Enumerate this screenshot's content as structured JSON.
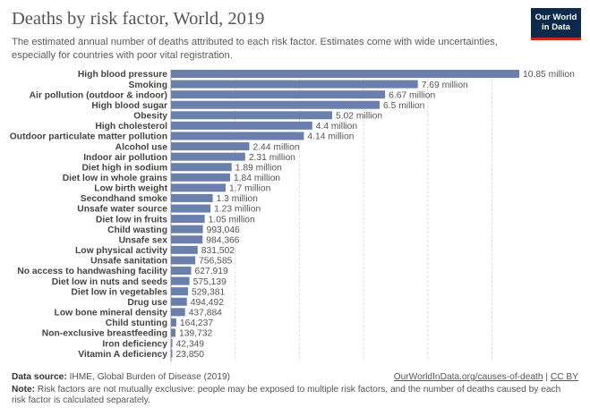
{
  "header": {
    "title": "Deaths by risk factor, World, 2019",
    "subtitle": "The estimated annual number of deaths attributed to each risk factor. Estimates come with wide uncertainties, especially for countries with poor vital registration.",
    "logo_line1": "Our World",
    "logo_line2": "in Data"
  },
  "footer": {
    "source_label": "Data source:",
    "source_text": "IHME, Global Burden of Disease (2019)",
    "link_text": "OurWorldInData.org/causes-of-death",
    "link_sep": " | ",
    "license": "CC BY",
    "note_label": "Note:",
    "note_text": "Risk factors are not mutually exclusive: people may be exposed to multiple risk factors, and the number of deaths caused by each risk factor is calculated separately."
  },
  "colors": {
    "bar": "#6a7fab",
    "logo_bg": "#0c2a4c",
    "logo_accent": "#ce261e"
  },
  "chart_data": {
    "type": "bar",
    "orientation": "horizontal",
    "categories": [
      "High blood pressure",
      "Smoking",
      "Air pollution (outdoor & indoor)",
      "High blood sugar",
      "Obesity",
      "High cholesterol",
      "Outdoor particulate matter pollution",
      "Alcohol use",
      "Indoor air pollution",
      "Diet high in sodium",
      "Diet low in whole grains",
      "Low birth weight",
      "Secondhand smoke",
      "Unsafe water source",
      "Diet low in fruits",
      "Child wasting",
      "Unsafe sex",
      "Low physical activity",
      "Unsafe sanitation",
      "No access to handwashing facility",
      "Diet low in nuts and seeds",
      "Diet low in vegetables",
      "Drug use",
      "Low bone mineral density",
      "Child stunting",
      "Non-exclusive breastfeeding",
      "Iron deficiency",
      "Vitamin A deficiency"
    ],
    "values": [
      10850000,
      7690000,
      6670000,
      6500000,
      5020000,
      4400000,
      4140000,
      2440000,
      2310000,
      1890000,
      1840000,
      1700000,
      1300000,
      1230000,
      1050000,
      993046,
      984366,
      831502,
      756585,
      627919,
      575139,
      529381,
      494492,
      437884,
      164237,
      139732,
      42349,
      23850
    ],
    "value_labels": [
      "10.85 million",
      "7.69 million",
      "6.67 million",
      "6.5 million",
      "5.02 million",
      "4.4 million",
      "4.14 million",
      "2.44 million",
      "2.31 million",
      "1.89 million",
      "1.84 million",
      "1.7 million",
      "1.3 million",
      "1.23 million",
      "1.05 million",
      "993,046",
      "984,366",
      "831,502",
      "756,585",
      "627,919",
      "575,139",
      "529,381",
      "494,492",
      "437,884",
      "164,237",
      "139,732",
      "42,349",
      "23,850"
    ],
    "xlim": [
      0,
      10850000
    ],
    "grid": true
  }
}
